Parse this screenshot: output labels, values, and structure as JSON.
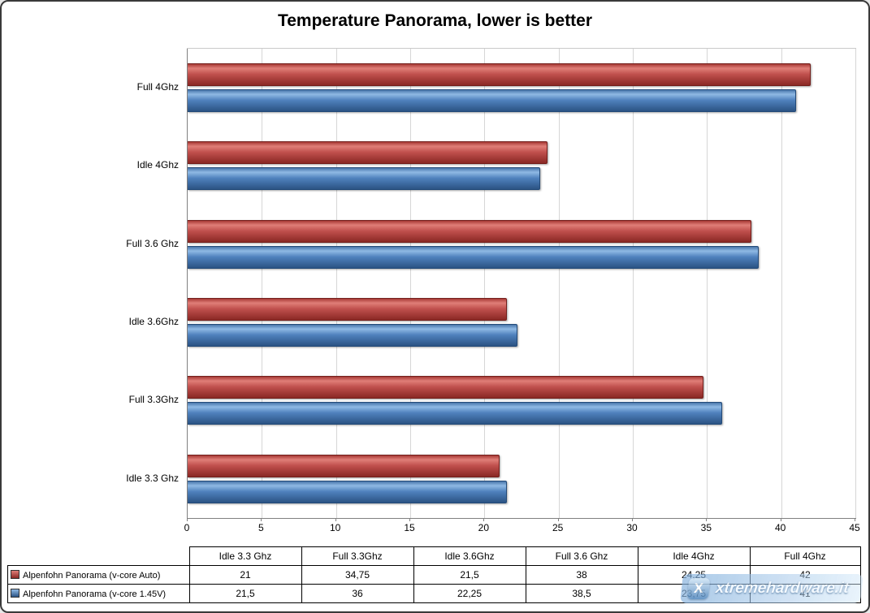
{
  "title": "Temperature Panorama, lower is better",
  "chart_data": {
    "type": "bar",
    "orientation": "horizontal",
    "title": "Temperature Panorama, lower is better",
    "categories": [
      "Idle 3.3 Ghz",
      "Full 3.3Ghz",
      "Idle 3.6Ghz",
      "Full 3.6 Ghz",
      "Idle 4Ghz",
      "Full 4Ghz"
    ],
    "series": [
      {
        "name": "Alpenfohn Panorama (v-core Auto)",
        "color": "#c0504d",
        "values": [
          21,
          34.75,
          21.5,
          38,
          24.25,
          42
        ],
        "display_values": [
          "21",
          "34,75",
          "21,5",
          "38",
          "24,25",
          "42"
        ]
      },
      {
        "name": "Alpenfohn Panorama (v-core 1.45V)",
        "color": "#4f81bd",
        "values": [
          21.5,
          36,
          22.25,
          38.5,
          23.75,
          41
        ],
        "display_values": [
          "21,5",
          "36",
          "22,25",
          "38,5",
          "23,75",
          "41"
        ]
      }
    ],
    "xlim": [
      0,
      45
    ],
    "x_ticks": [
      0,
      5,
      10,
      15,
      20,
      25,
      30,
      35,
      40,
      45
    ],
    "grid": true,
    "legend_position": "table-rows-bottom-left",
    "category_order_on_axis_top_to_bottom": [
      "Full 4Ghz",
      "Idle 4Ghz",
      "Full 3.6 Ghz",
      "Idle 3.6Ghz",
      "Full 3.3Ghz",
      "Idle 3.3 Ghz"
    ]
  },
  "watermark": {
    "text": "xtremehardware.it"
  }
}
